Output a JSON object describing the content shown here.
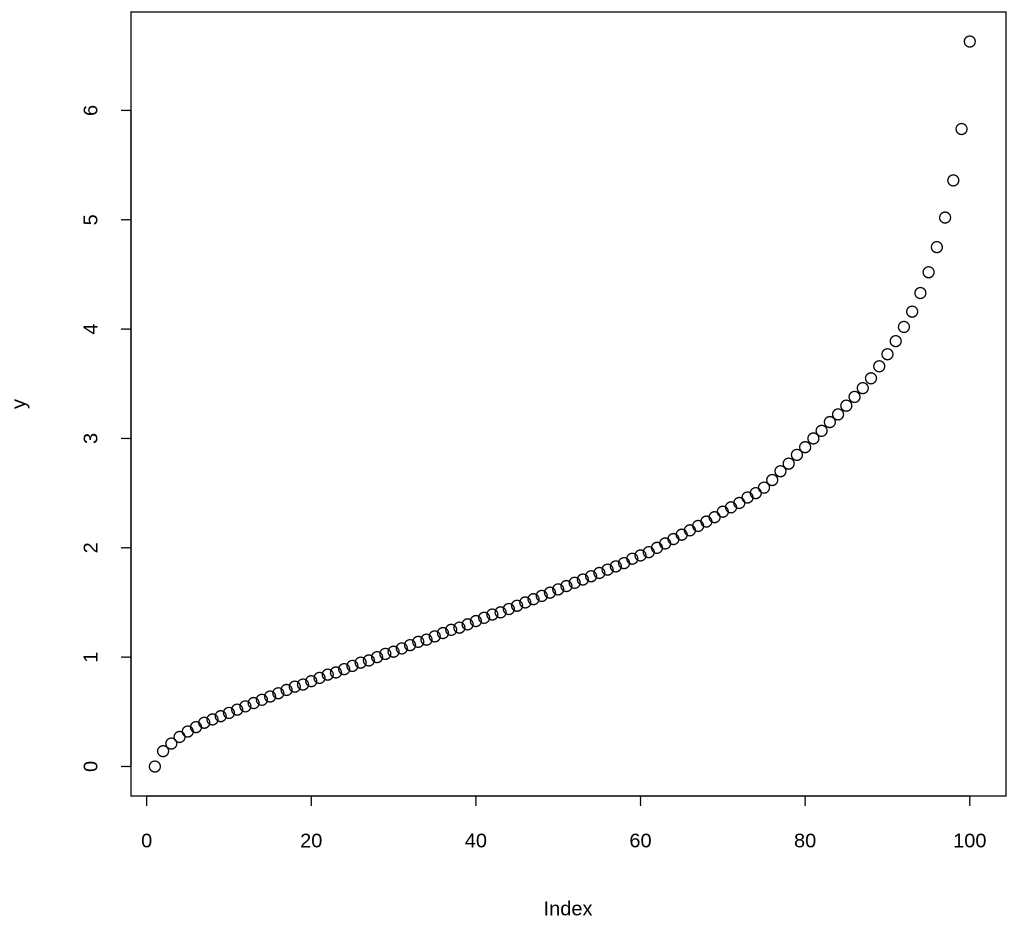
{
  "chart_data": {
    "type": "scatter",
    "xlabel": "Index",
    "ylabel": "y",
    "color": "#000000",
    "x": [
      1,
      2,
      3,
      4,
      5,
      6,
      7,
      8,
      9,
      10,
      11,
      12,
      13,
      14,
      15,
      16,
      17,
      18,
      19,
      20,
      21,
      22,
      23,
      24,
      25,
      26,
      27,
      28,
      29,
      30,
      31,
      32,
      33,
      34,
      35,
      36,
      37,
      38,
      39,
      40,
      41,
      42,
      43,
      44,
      45,
      46,
      47,
      48,
      49,
      50,
      51,
      52,
      53,
      54,
      55,
      56,
      57,
      58,
      59,
      60,
      61,
      62,
      63,
      64,
      65,
      66,
      67,
      68,
      69,
      70,
      71,
      72,
      73,
      74,
      75,
      76,
      77,
      78,
      79,
      80,
      81,
      82,
      83,
      84,
      85,
      86,
      87,
      88,
      89,
      90,
      91,
      92,
      93,
      94,
      95,
      96,
      97,
      98,
      99,
      100
    ],
    "values": [
      0,
      0.14,
      0.21,
      0.27,
      0.32,
      0.36,
      0.4,
      0.43,
      0.46,
      0.49,
      0.52,
      0.55,
      0.58,
      0.61,
      0.64,
      0.67,
      0.7,
      0.73,
      0.75,
      0.78,
      0.81,
      0.84,
      0.86,
      0.89,
      0.92,
      0.95,
      0.97,
      1.0,
      1.03,
      1.05,
      1.08,
      1.11,
      1.14,
      1.16,
      1.19,
      1.22,
      1.25,
      1.27,
      1.3,
      1.33,
      1.36,
      1.39,
      1.41,
      1.44,
      1.47,
      1.5,
      1.53,
      1.56,
      1.59,
      1.62,
      1.65,
      1.68,
      1.71,
      1.74,
      1.77,
      1.8,
      1.83,
      1.86,
      1.9,
      1.93,
      1.96,
      2.0,
      2.04,
      2.08,
      2.12,
      2.16,
      2.2,
      2.24,
      2.28,
      2.33,
      2.37,
      2.41,
      2.46,
      2.5,
      2.55,
      2.62,
      2.7,
      2.77,
      2.85,
      2.92,
      3.0,
      3.07,
      3.15,
      3.22,
      3.3,
      3.38,
      3.46,
      3.55,
      3.66,
      3.77,
      3.89,
      4.02,
      4.16,
      4.33,
      4.52,
      4.75,
      5.02,
      5.36,
      5.83,
      6.63
    ],
    "xlim": [
      -1.9,
      104.4
    ],
    "ylim": [
      -0.27,
      6.9
    ],
    "xticks": [
      0,
      20,
      40,
      60,
      80,
      100
    ],
    "yticks": [
      0,
      1,
      2,
      3,
      4,
      5,
      6
    ]
  }
}
